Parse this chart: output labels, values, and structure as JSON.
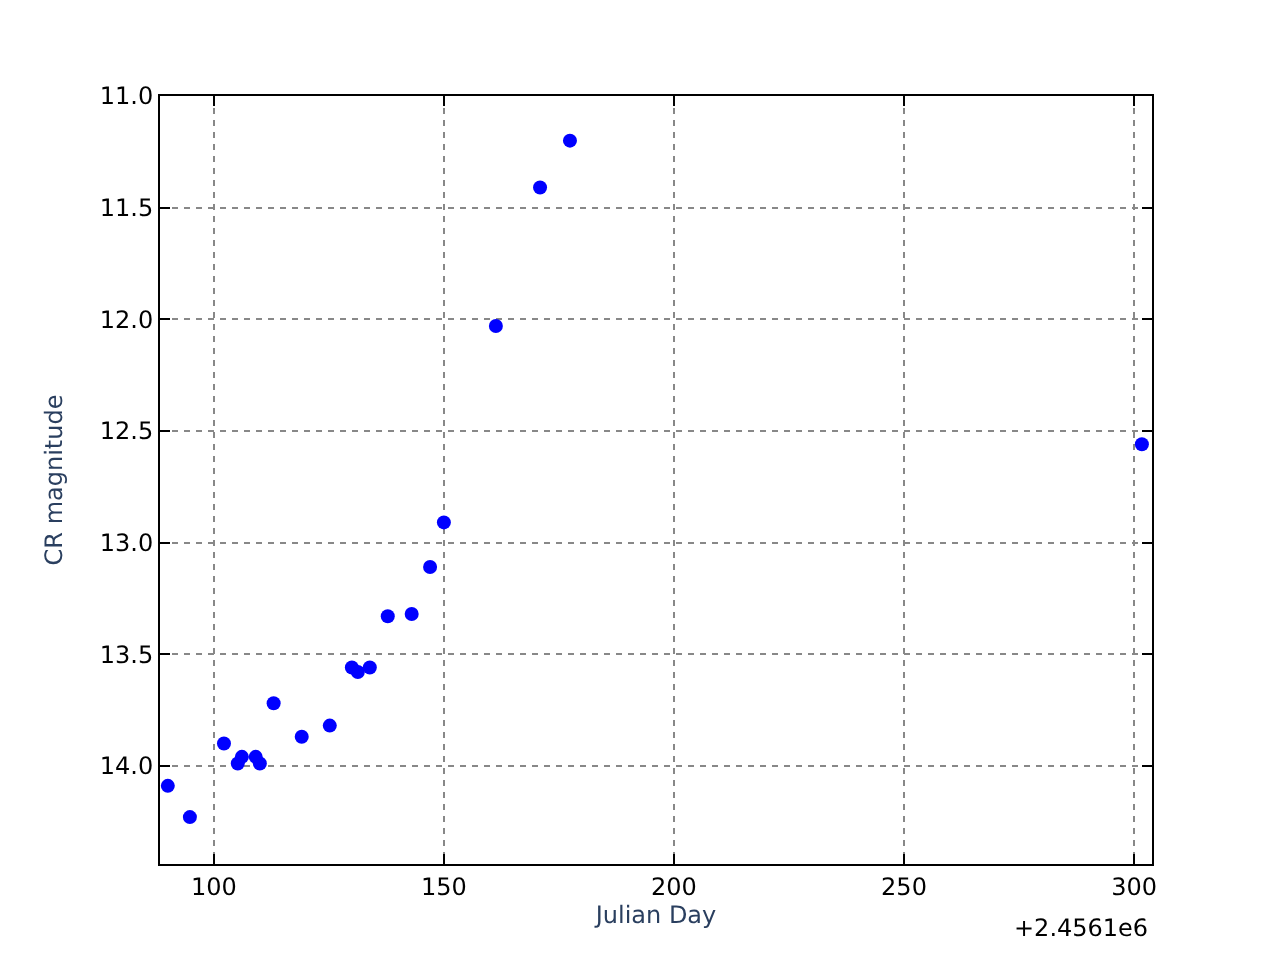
{
  "chart_data": {
    "type": "scatter",
    "xlabel": "Julian Day",
    "ylabel": "CR magnitude",
    "x": [
      90.0,
      94.8,
      102.2,
      105.2,
      106.1,
      109.1,
      110.0,
      113.0,
      119.1,
      125.2,
      130.0,
      131.3,
      133.9,
      137.8,
      143.0,
      147.0,
      150.0,
      161.3,
      170.9,
      177.4,
      301.7
    ],
    "series": [
      {
        "color": "#0000ff",
        "values": [
          14.09,
          14.23,
          13.9,
          13.99,
          13.96,
          13.96,
          13.99,
          13.72,
          13.87,
          13.82,
          13.56,
          13.58,
          13.56,
          13.33,
          13.32,
          13.11,
          12.91,
          12.03,
          11.41,
          11.2,
          12.56
        ]
      }
    ],
    "xlim": [
      88.3,
      303.9
    ],
    "xticks": [
      100,
      150,
      200,
      250,
      300
    ],
    "ylim": [
      14.44,
      11.0
    ],
    "yticks": [
      {
        "value": 11.0,
        "label": "11.0"
      },
      {
        "value": 11.5,
        "label": "11.5"
      },
      {
        "value": 12.0,
        "label": "12.0"
      },
      {
        "value": 12.5,
        "label": "12.5"
      },
      {
        "value": 13.0,
        "label": "13.0"
      },
      {
        "value": 13.5,
        "label": "13.5"
      },
      {
        "value": 14.0,
        "label": "14.0"
      }
    ],
    "annotations": [
      "+2.4561e6"
    ],
    "grid": true,
    "legend": false,
    "marker": "circle"
  }
}
